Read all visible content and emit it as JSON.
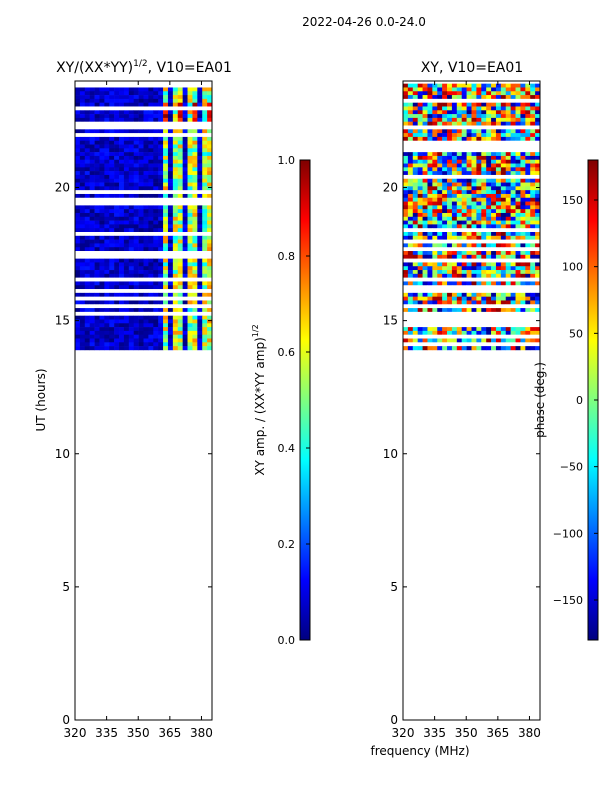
{
  "figure": {
    "suptitle": "2022-04-26 0.0-24.0",
    "xlabel": "frequency (MHz)"
  },
  "colormap": [
    "#00007f",
    "#0000ff",
    "#007fff",
    "#00ffff",
    "#7fff7f",
    "#ffff00",
    "#ff7f00",
    "#ff0000",
    "#7f0000"
  ],
  "chart_data": [
    {
      "type": "heatmap",
      "title": "XY/(XX*YY)",
      "title_sup": "1/2",
      "title_suffix": ", V10=EA01",
      "xlabel": "",
      "ylabel": "UT (hours)",
      "xlim": [
        320,
        385
      ],
      "ylim": [
        0,
        24
      ],
      "xticks": [
        "320",
        "335",
        "350",
        "365",
        "380"
      ],
      "xtick_values": [
        320,
        335,
        350,
        365,
        380
      ],
      "yticks": [
        "0",
        "5",
        "10",
        "15",
        "20"
      ],
      "ytick_values": [
        0,
        5,
        10,
        15,
        20
      ],
      "data_time_range": [
        13.9,
        23.9
      ],
      "colorbar": {
        "label": "XY amp. / (XX*YY amp)",
        "label_sup": "1/2",
        "range": [
          0.0,
          1.0
        ],
        "ticks": [
          "0.0",
          "0.2",
          "0.4",
          "0.6",
          "0.8",
          "1.0"
        ],
        "tick_values": [
          0.0,
          0.2,
          0.4,
          0.6,
          0.8,
          1.0
        ]
      }
    },
    {
      "type": "heatmap",
      "title": "XY, V10=EA01",
      "xlabel": "",
      "ylabel": "",
      "xlim": [
        320,
        385
      ],
      "ylim": [
        0,
        24
      ],
      "xticks": [
        "320",
        "335",
        "350",
        "365",
        "380"
      ],
      "xtick_values": [
        320,
        335,
        350,
        365,
        380
      ],
      "yticks": [
        "0",
        "5",
        "10",
        "15",
        "20"
      ],
      "ytick_values": [
        0,
        5,
        10,
        15,
        20
      ],
      "data_time_range": [
        13.9,
        23.9
      ],
      "colorbar": {
        "label": "phase (deg.)",
        "range": [
          -180,
          180
        ],
        "ticks": [
          "−150",
          "−100",
          "−50",
          "0",
          "50",
          "100",
          "150"
        ],
        "tick_values": [
          -150,
          -100,
          -50,
          0,
          50,
          100,
          150
        ]
      }
    }
  ]
}
